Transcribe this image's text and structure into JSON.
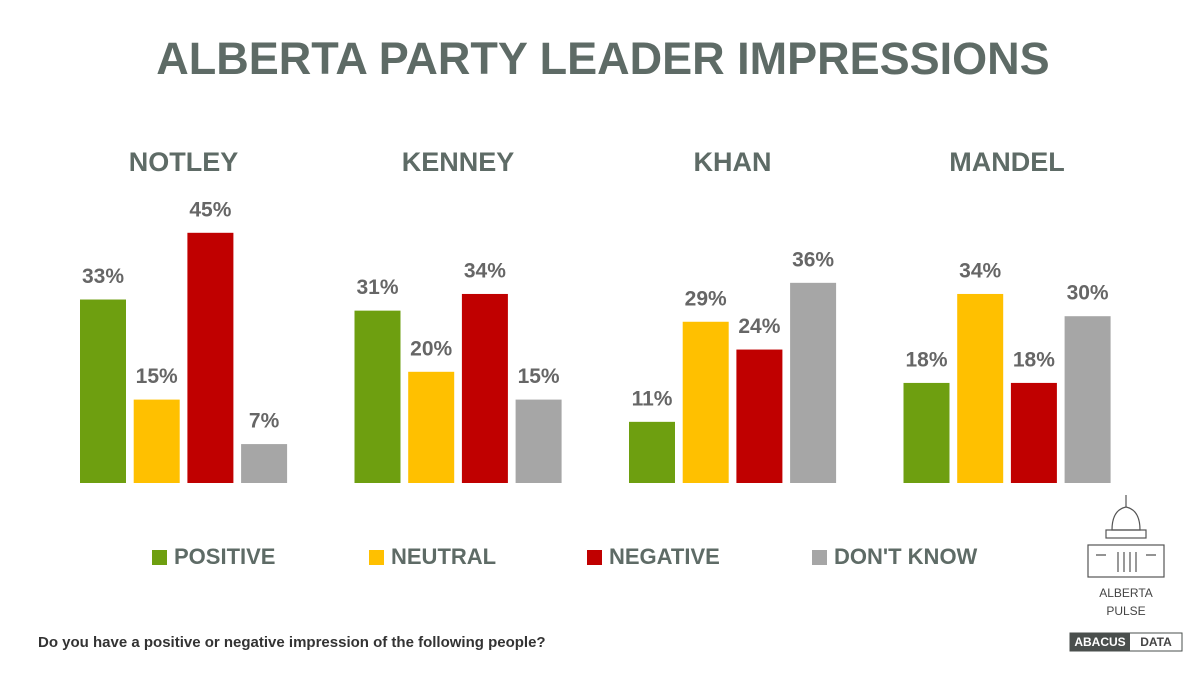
{
  "chart_data": {
    "type": "bar",
    "title": "ALBERTA PARTY LEADER IMPRESSIONS",
    "categories": [
      "NOTLEY",
      "KENNEY",
      "KHAN",
      "MANDEL"
    ],
    "series": [
      {
        "name": "POSITIVE",
        "color": "#6e9f10",
        "values": [
          33,
          31,
          11,
          18
        ],
        "value_labels": [
          "33%",
          "31%",
          "11%",
          "18%"
        ]
      },
      {
        "name": "NEUTRAL",
        "color": "#ffc000",
        "values": [
          15,
          20,
          29,
          34
        ],
        "value_labels": [
          "15%",
          "20%",
          "29%",
          "34%"
        ]
      },
      {
        "name": "NEGATIVE",
        "color": "#c00000",
        "values": [
          45,
          34,
          24,
          18
        ],
        "value_labels": [
          "45%",
          "34%",
          "24%",
          "18%"
        ]
      },
      {
        "name": "DON'T KNOW",
        "color": "#a6a6a6",
        "values": [
          7,
          15,
          36,
          30
        ],
        "value_labels": [
          "7%",
          "15%",
          "36%",
          "30%"
        ]
      }
    ],
    "footnote": "Do you have a positive or negative impression of the following people?"
  },
  "logo": {
    "line1": "ALBERTA",
    "line2": "PULSE",
    "brand_left": "ABACUS",
    "brand_right": "DATA"
  }
}
